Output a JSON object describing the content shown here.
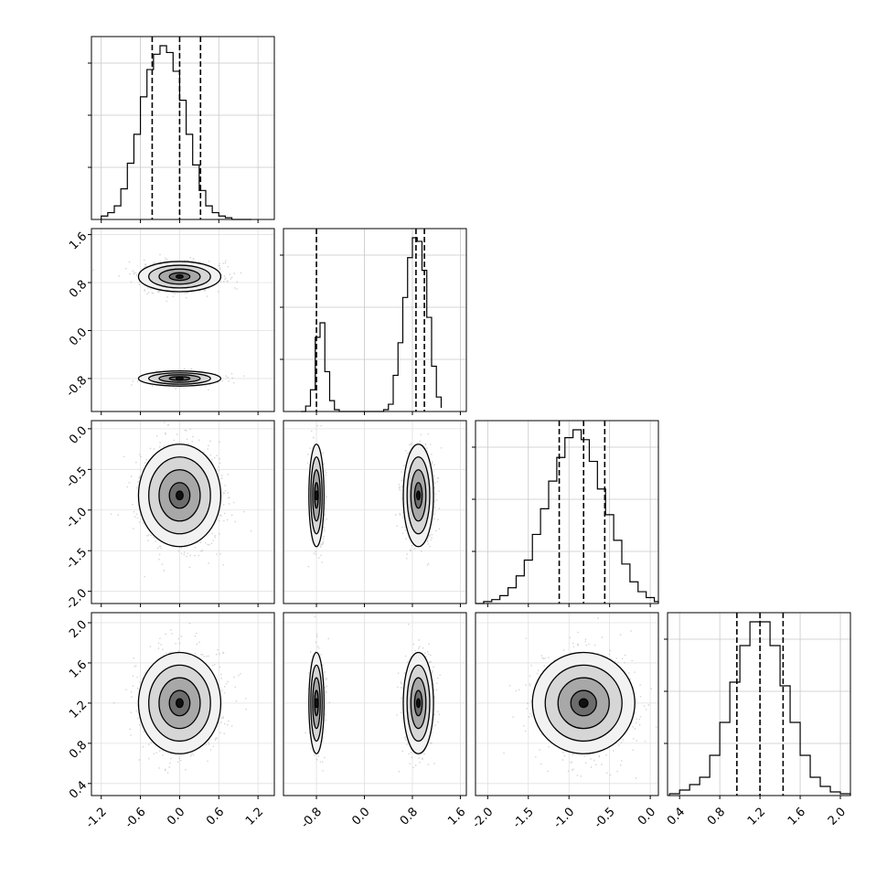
{
  "chart_data": {
    "type": "corner",
    "title": "",
    "parameters": 4,
    "parameter_labels": [
      "",
      "",
      "",
      ""
    ],
    "ranges": [
      [
        -1.35,
        1.45
      ],
      [
        -1.35,
        1.7
      ],
      [
        -2.15,
        0.1
      ],
      [
        0.28,
        2.1
      ]
    ],
    "ticks": [
      [
        "-1.2",
        "-0.6",
        "0.0",
        "0.6",
        "1.2"
      ],
      [
        "-0.8",
        "0.0",
        "0.8",
        "1.6"
      ],
      [
        "-2.0",
        "-1.5",
        "-1.0",
        "-0.5",
        "0.0"
      ],
      [
        "0.4",
        "0.8",
        "1.2",
        "1.6",
        "2.0"
      ]
    ],
    "quantiles": [
      [
        -0.42,
        0.0,
        0.32
      ],
      [
        -0.8,
        0.86,
        1.0
      ],
      [
        -1.12,
        -0.82,
        -0.56
      ],
      [
        0.97,
        1.2,
        1.43
      ]
    ],
    "marginals": [
      {
        "bin_edges": [
          -1.2,
          -1.1,
          -1.0,
          -0.9,
          -0.8,
          -0.7,
          -0.6,
          -0.5,
          -0.4,
          -0.3,
          -0.2,
          -0.1,
          0.0,
          0.1,
          0.2,
          0.3,
          0.4,
          0.5,
          0.6,
          0.7,
          0.8,
          0.9,
          1.0,
          1.1
        ],
        "counts": [
          2,
          4,
          8,
          18,
          33,
          50,
          72,
          88,
          97,
          102,
          98,
          87,
          70,
          50,
          32,
          17,
          8,
          4,
          2,
          1,
          0,
          0,
          0
        ]
      },
      {
        "bin_edges": [
          -1.06,
          -0.98,
          -0.9,
          -0.82,
          -0.74,
          -0.66,
          -0.58,
          -0.5,
          -0.42,
          -0.34,
          0.32,
          0.4,
          0.48,
          0.56,
          0.64,
          0.72,
          0.8,
          0.88,
          0.96,
          1.04,
          1.12,
          1.2,
          1.28
        ],
        "counts": [
          0,
          3,
          12,
          41,
          49,
          22,
          6,
          1,
          0,
          0,
          1,
          4,
          20,
          38,
          63,
          85,
          96,
          94,
          78,
          52,
          25,
          8,
          2
        ]
      },
      {
        "bin_edges": [
          -2.15,
          -2.05,
          -1.95,
          -1.85,
          -1.75,
          -1.65,
          -1.55,
          -1.45,
          -1.35,
          -1.25,
          -1.15,
          -1.05,
          -0.95,
          -0.85,
          -0.75,
          -0.65,
          -0.55,
          -0.45,
          -0.35,
          -0.25,
          -0.15,
          -0.05,
          0.05,
          0.1
        ],
        "counts": [
          0,
          1,
          2,
          4,
          8,
          14,
          22,
          35,
          48,
          62,
          74,
          84,
          88,
          83,
          72,
          58,
          45,
          32,
          20,
          11,
          6,
          3,
          1
        ]
      },
      {
        "bin_edges": [
          0.3,
          0.4,
          0.5,
          0.6,
          0.7,
          0.8,
          0.9,
          1.0,
          1.1,
          1.2,
          1.3,
          1.4,
          1.5,
          1.6,
          1.7,
          1.8,
          1.9,
          2.0,
          2.1
        ],
        "counts": [
          1,
          3,
          6,
          10,
          22,
          40,
          62,
          82,
          95,
          95,
          82,
          60,
          40,
          22,
          10,
          5,
          2,
          1
        ]
      }
    ],
    "density_modes": [
      {
        "param": 0,
        "components": [
          {
            "mean": 0.0,
            "sd": 0.3,
            "weight": 1
          }
        ]
      },
      {
        "param": 1,
        "components": [
          {
            "mean": -0.8,
            "sd": 0.06,
            "weight": 0.33
          },
          {
            "mean": 0.9,
            "sd": 0.12,
            "weight": 0.67
          }
        ]
      },
      {
        "param": 2,
        "components": [
          {
            "mean": -0.82,
            "sd": 0.3,
            "weight": 1
          }
        ]
      },
      {
        "param": 3,
        "components": [
          {
            "mean": 1.2,
            "sd": 0.24,
            "weight": 1
          }
        ]
      }
    ],
    "grid": true
  }
}
